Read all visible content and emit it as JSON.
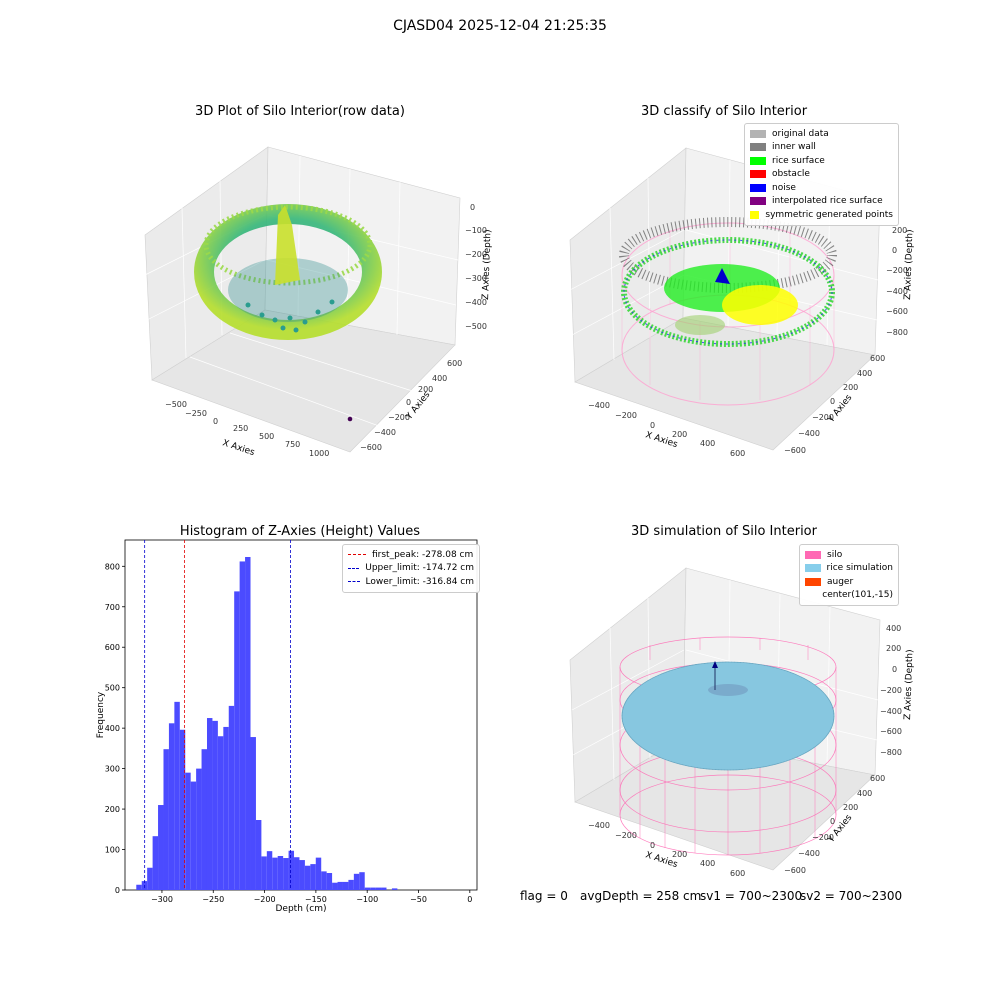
{
  "suptitle": "CJASD04 2025-12-04 21:25:35",
  "colors": {
    "hist_bar": "#4b4bff",
    "first_peak": "#e00000",
    "limits": "#0000cc",
    "pane_gray": "#f2f2f2",
    "silo_pink": "#ff69b4",
    "rice_sim": "#87c7e0"
  },
  "panels": {
    "raw": {
      "title": "3D Plot of Silo Interior(row data)",
      "xlabel": "X Axies",
      "ylabel": "Y Axies",
      "zlabel": "Z Axies (Depth)",
      "xticks": [
        "−500",
        "−250",
        "0",
        "250",
        "500",
        "750",
        "1000"
      ],
      "yticks": [
        "600",
        "400",
        "200",
        "0",
        "−200",
        "−400",
        "−600"
      ],
      "zticks": [
        "0",
        "−100",
        "−200",
        "−300",
        "−400",
        "−500"
      ]
    },
    "classify": {
      "title": "3D classify of Silo Interior",
      "xlabel": "X Axies",
      "ylabel": "Y Axies",
      "zlabel": "Z Axies (Depth)",
      "xticks": [
        "−400",
        "−200",
        "0",
        "200",
        "400",
        "600"
      ],
      "yticks": [
        "600",
        "400",
        "200",
        "0",
        "−200",
        "−400",
        "−600"
      ],
      "zticks": [
        "200",
        "0",
        "−200",
        "−400",
        "−600",
        "−800"
      ],
      "legend": [
        {
          "label": "original data",
          "color": "#b3b3b3"
        },
        {
          "label": "inner wall",
          "color": "#808080"
        },
        {
          "label": "rice surface",
          "color": "#00ff00"
        },
        {
          "label": "obstacle",
          "color": "#ff0000"
        },
        {
          "label": "noise",
          "color": "#0000ff"
        },
        {
          "label": "interpolated rice surface",
          "color": "#800080"
        },
        {
          "label": "symmetric generated points",
          "color": "#ffff00"
        }
      ]
    },
    "simulation": {
      "title": "3D simulation of Silo Interior",
      "xlabel": "X Axies",
      "ylabel": "Y Axies",
      "zlabel": "Z Axies (Depth)",
      "xticks": [
        "−400",
        "−200",
        "0",
        "200",
        "400",
        "600"
      ],
      "yticks": [
        "600",
        "400",
        "200",
        "0",
        "−200",
        "−400",
        "−600"
      ],
      "zticks": [
        "400",
        "200",
        "0",
        "−200",
        "−400",
        "−600",
        "−800"
      ],
      "legend": [
        {
          "label": "silo",
          "color": "#ff69b4"
        },
        {
          "label": "rice simulation",
          "color": "#87ceeb"
        },
        {
          "label": "auger",
          "color": "#ff4500"
        },
        {
          "label": "center(101,-15)",
          "color": ""
        }
      ]
    }
  },
  "chart_data": {
    "type": "bar",
    "title": "Histogram of Z-Axies (Height) Values",
    "xlabel": "Depth (cm)",
    "ylabel": "Frequency",
    "xlim": [
      -336,
      7
    ],
    "ylim": [
      0,
      865
    ],
    "xticks": [
      -300,
      -250,
      -200,
      -150,
      -100,
      -50,
      0
    ],
    "xtick_labels": [
      "−300",
      "−250",
      "−200",
      "−150",
      "−100",
      "−50",
      "0"
    ],
    "yticks": [
      0,
      100,
      200,
      300,
      400,
      500,
      600,
      700,
      800
    ],
    "bin_start": -325,
    "bin_width": 5.3,
    "values": [
      13,
      22,
      55,
      133,
      210,
      348,
      412,
      465,
      396,
      290,
      268,
      300,
      348,
      425,
      418,
      380,
      403,
      455,
      738,
      812,
      823,
      378,
      173,
      83,
      96,
      80,
      84,
      79,
      97,
      81,
      74,
      60,
      64,
      80,
      46,
      42,
      18,
      20,
      20,
      25,
      40,
      44,
      6,
      6,
      6,
      6,
      0,
      4
    ],
    "vlines": [
      {
        "label": "first_peak: -278.08 cm",
        "x": -278.08,
        "color": "#e00000"
      },
      {
        "label": "Upper_limit: -174.72 cm",
        "x": -174.72,
        "color": "#0000cc"
      },
      {
        "label": "Lower_limit: -316.84 cm",
        "x": -316.84,
        "color": "#0000cc"
      }
    ],
    "legend_position": "upper right"
  },
  "footer": {
    "flag": "flag = 0",
    "avg_depth": "avgDepth = 258 cm",
    "sv1": "sv1 = 700~2300",
    "sv2": "sv2 = 700~2300"
  }
}
